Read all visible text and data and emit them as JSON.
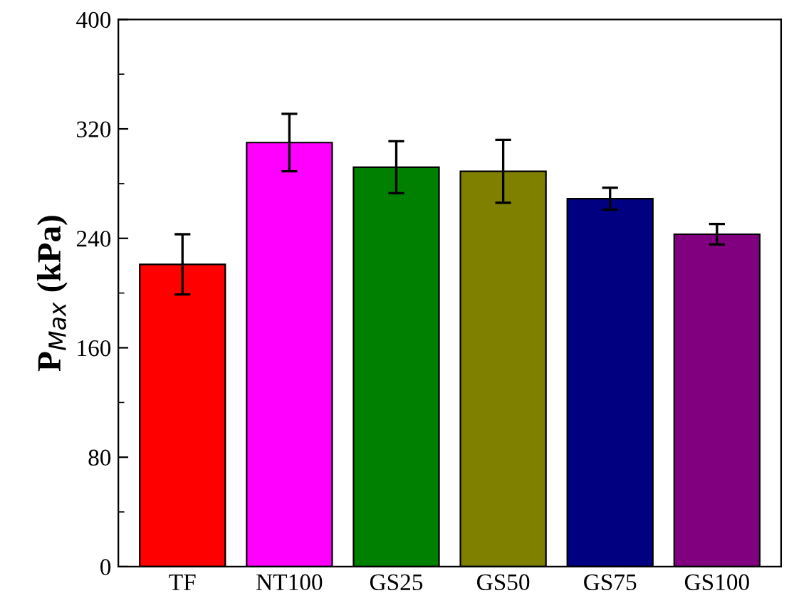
{
  "chart_data": {
    "type": "bar",
    "ylabel": "P$_{Max}$ (kPa)",
    "categories": [
      "TF",
      "NT100",
      "GS25",
      "GS50",
      "GS75",
      "GS100"
    ],
    "values": [
      221,
      310,
      292,
      289,
      269,
      243
    ],
    "errors": [
      22,
      21,
      19,
      23,
      8,
      7.5
    ],
    "colors": [
      "#ff0000",
      "#ff00ff",
      "#008000",
      "#808000",
      "#000080",
      "#800080"
    ],
    "ylim": [
      0,
      400
    ],
    "yticks": [
      0,
      {
        "value": 40,
        "label": null
      },
      80,
      {
        "value": 120,
        "label": null
      },
      160,
      {
        "value": 200,
        "label": null
      },
      240,
      {
        "value": 280,
        "label": null
      },
      320,
      {
        "value": 360,
        "label": null
      },
      400
    ],
    "grid": false
  }
}
